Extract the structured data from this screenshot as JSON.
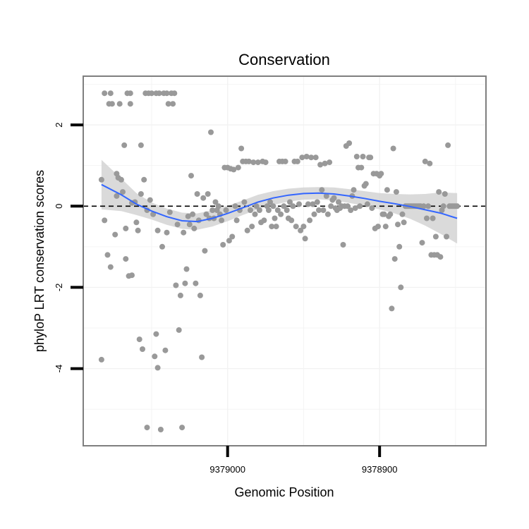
{
  "chart_data": {
    "type": "scatter",
    "title": "Conservation",
    "xlabel": "Genomic Position",
    "ylabel": "phyloP LRT conservation scores",
    "x_reversed": true,
    "xlim": [
      9379095,
      9378830
    ],
    "ylim": [
      -5.9,
      3.2
    ],
    "x_ticks": [
      9379000,
      9378900
    ],
    "x_tick_labels": [
      "9379000",
      "9378900"
    ],
    "y_ticks": [
      -4,
      -2,
      0,
      2
    ],
    "y_tick_labels": [
      "-4",
      "-2",
      "0",
      "2"
    ],
    "grid": true,
    "legend": "none",
    "colors": {
      "points": "#999999",
      "smooth": "#3366ff",
      "ribbon": "#d3d3d3",
      "reference": "#000000",
      "panel_border": "#7f7f7f"
    },
    "reference_line": {
      "y": 0,
      "style": "dashed"
    },
    "points": [
      [
        9379083,
        0.65
      ],
      [
        9379083,
        -3.78
      ],
      [
        9379081,
        2.78
      ],
      [
        9379081,
        -0.35
      ],
      [
        9379079,
        -1.2
      ],
      [
        9379078,
        2.52
      ],
      [
        9379077,
        2.78
      ],
      [
        9379077,
        -1.5
      ],
      [
        9379076,
        2.52
      ],
      [
        9379074,
        -0.7
      ],
      [
        9379073,
        0.8
      ],
      [
        9379073,
        0.25
      ],
      [
        9379072,
        0.7
      ],
      [
        9379071,
        2.52
      ],
      [
        9379070,
        0.65
      ],
      [
        9379069,
        0.35
      ],
      [
        9379068,
        1.5
      ],
      [
        9379067,
        -1.3
      ],
      [
        9379067,
        -0.55
      ],
      [
        9379066,
        2.78
      ],
      [
        9379065,
        -1.72
      ],
      [
        9379064,
        2.78
      ],
      [
        9379064,
        2.52
      ],
      [
        9379063,
        -1.7
      ],
      [
        9379063,
        0.08
      ],
      [
        9379061,
        0.1
      ],
      [
        9379060,
        -0.4
      ],
      [
        9379059,
        -0.6
      ],
      [
        9379058,
        -3.28
      ],
      [
        9379057,
        0.3
      ],
      [
        9379057,
        1.5
      ],
      [
        9379056,
        -3.52
      ],
      [
        9379055,
        0.65
      ],
      [
        9379054,
        2.78
      ],
      [
        9379053,
        -5.45
      ],
      [
        9379053,
        -0.1
      ],
      [
        9379052,
        2.78
      ],
      [
        9379051,
        0.15
      ],
      [
        9379050,
        2.78
      ],
      [
        9379049,
        -0.2
      ],
      [
        9379048,
        -3.7
      ],
      [
        9379047,
        -3.15
      ],
      [
        9379047,
        2.78
      ],
      [
        9379046,
        -3.98
      ],
      [
        9379046,
        -0.6
      ],
      [
        9379045,
        2.78
      ],
      [
        9379044,
        -5.5
      ],
      [
        9379043,
        -1.0
      ],
      [
        9379042,
        2.78
      ],
      [
        9379041,
        -3.55
      ],
      [
        9379040,
        -0.65
      ],
      [
        9379040,
        2.78
      ],
      [
        9379039,
        2.52
      ],
      [
        9379038,
        -0.15
      ],
      [
        9379037,
        2.78
      ],
      [
        9379036,
        2.52
      ],
      [
        9379035,
        2.78
      ],
      [
        9379034,
        -1.95
      ],
      [
        9379033,
        -0.45
      ],
      [
        9379032,
        -3.05
      ],
      [
        9379031,
        -2.2
      ],
      [
        9379030,
        -5.45
      ],
      [
        9379029,
        -0.65
      ],
      [
        9379028,
        -1.9
      ],
      [
        9379027,
        -1.55
      ],
      [
        9379026,
        -0.25
      ],
      [
        9379025,
        -0.45
      ],
      [
        9379024,
        0.75
      ],
      [
        9379023,
        -0.2
      ],
      [
        9379022,
        -0.55
      ],
      [
        9379021,
        -1.9
      ],
      [
        9379020,
        0.3
      ],
      [
        9379019,
        -0.35
      ],
      [
        9379018,
        -2.2
      ],
      [
        9379017,
        -3.72
      ],
      [
        9379016,
        0.2
      ],
      [
        9379015,
        -1.1
      ],
      [
        9379014,
        -0.2
      ],
      [
        9379013,
        0.3
      ],
      [
        9379012,
        -0.3
      ],
      [
        9379011,
        1.82
      ],
      [
        9379010,
        -0.1
      ],
      [
        9379009,
        -0.3
      ],
      [
        9379008,
        0.1
      ],
      [
        9379007,
        -0.1
      ],
      [
        9379006,
        0.0
      ],
      [
        9379005,
        -0.2
      ],
      [
        9379004,
        -0.35
      ],
      [
        9379003,
        -0.95
      ],
      [
        9379002,
        0.95
      ],
      [
        9379001,
        -0.1
      ],
      [
        9379000,
        0.95
      ],
      [
        9378999,
        -0.85
      ],
      [
        9378998,
        0.92
      ],
      [
        9378997,
        -0.75
      ],
      [
        9378996,
        0.9
      ],
      [
        9378995,
        0.0
      ],
      [
        9378994,
        -0.35
      ],
      [
        9378993,
        0.95
      ],
      [
        9378992,
        -0.1
      ],
      [
        9378991,
        1.42
      ],
      [
        9378990,
        1.1
      ],
      [
        9378989,
        0.1
      ],
      [
        9378988,
        1.1
      ],
      [
        9378987,
        -0.6
      ],
      [
        9378986,
        1.1
      ],
      [
        9378985,
        -0.1
      ],
      [
        9378984,
        -0.5
      ],
      [
        9378983,
        1.08
      ],
      [
        9378982,
        -0.2
      ],
      [
        9378981,
        0.0
      ],
      [
        9378980,
        1.08
      ],
      [
        9378979,
        -0.1
      ],
      [
        9378978,
        -0.4
      ],
      [
        9378977,
        1.1
      ],
      [
        9378976,
        -0.35
      ],
      [
        9378975,
        1.08
      ],
      [
        9378974,
        0.0
      ],
      [
        9378973,
        -0.1
      ],
      [
        9378972,
        0.1
      ],
      [
        9378971,
        -0.5
      ],
      [
        9378970,
        0.0
      ],
      [
        9378969,
        -0.3
      ],
      [
        9378968,
        -0.5
      ],
      [
        9378967,
        -0.1
      ],
      [
        9378966,
        1.1
      ],
      [
        9378965,
        -0.2
      ],
      [
        9378964,
        1.1
      ],
      [
        9378963,
        0.0
      ],
      [
        9378962,
        1.1
      ],
      [
        9378961,
        -0.1
      ],
      [
        9378960,
        -0.3
      ],
      [
        9378959,
        0.1
      ],
      [
        9378958,
        -0.35
      ],
      [
        9378957,
        0.0
      ],
      [
        9378956,
        1.1
      ],
      [
        9378955,
        -0.5
      ],
      [
        9378954,
        1.1
      ],
      [
        9378953,
        0.05
      ],
      [
        9378952,
        -0.6
      ],
      [
        9378951,
        1.2
      ],
      [
        9378950,
        -0.5
      ],
      [
        9378949,
        -0.8
      ],
      [
        9378948,
        1.22
      ],
      [
        9378947,
        0.05
      ],
      [
        9378946,
        -0.35
      ],
      [
        9378945,
        1.2
      ],
      [
        9378944,
        0.05
      ],
      [
        9378943,
        -0.2
      ],
      [
        9378942,
        1.2
      ],
      [
        9378941,
        0.1
      ],
      [
        9378940,
        -0.1
      ],
      [
        9378939,
        1.02
      ],
      [
        9378938,
        0.4
      ],
      [
        9378937,
        -0.1
      ],
      [
        9378936,
        1.05
      ],
      [
        9378935,
        0.25
      ],
      [
        9378934,
        -0.2
      ],
      [
        9378933,
        1.08
      ],
      [
        9378932,
        0.0
      ],
      [
        9378931,
        0.15
      ],
      [
        9378930,
        0.2
      ],
      [
        9378929,
        -0.05
      ],
      [
        9378928,
        -0.1
      ],
      [
        9378927,
        0.1
      ],
      [
        9378926,
        -0.05
      ],
      [
        9378925,
        0.0
      ],
      [
        9378924,
        -0.95
      ],
      [
        9378923,
        0.0
      ],
      [
        9378922,
        1.48
      ],
      [
        9378921,
        0.0
      ],
      [
        9378920,
        1.55
      ],
      [
        9378919,
        -0.1
      ],
      [
        9378918,
        0.25
      ],
      [
        9378917,
        0.4
      ],
      [
        9378916,
        -0.05
      ],
      [
        9378915,
        1.22
      ],
      [
        9378914,
        0.95
      ],
      [
        9378913,
        0.0
      ],
      [
        9378912,
        0.95
      ],
      [
        9378911,
        1.22
      ],
      [
        9378910,
        0.5
      ],
      [
        9378909,
        0.55
      ],
      [
        9378908,
        0.05
      ],
      [
        9378907,
        1.2
      ],
      [
        9378906,
        1.2
      ],
      [
        9378905,
        -0.05
      ],
      [
        9378904,
        0.8
      ],
      [
        9378903,
        -0.55
      ],
      [
        9378902,
        0.8
      ],
      [
        9378901,
        -0.5
      ],
      [
        9378900,
        0.75
      ],
      [
        9378899,
        0.8
      ],
      [
        9378898,
        -0.2
      ],
      [
        9378897,
        -0.2
      ],
      [
        9378896,
        -0.5
      ],
      [
        9378895,
        0.4
      ],
      [
        9378894,
        -0.25
      ],
      [
        9378893,
        -0.2
      ],
      [
        9378892,
        -2.52
      ],
      [
        9378891,
        1.42
      ],
      [
        9378890,
        -1.3
      ],
      [
        9378889,
        0.35
      ],
      [
        9378888,
        -0.45
      ],
      [
        9378887,
        -1.0
      ],
      [
        9378886,
        -2.0
      ],
      [
        9378885,
        -0.2
      ],
      [
        9378884,
        -0.4
      ],
      [
        9378883,
        0.0
      ],
      [
        9378882,
        0.0
      ],
      [
        9378881,
        0.0
      ],
      [
        9378880,
        0.0
      ],
      [
        9378879,
        0.0
      ],
      [
        9378878,
        0.0
      ],
      [
        9378877,
        0.0
      ],
      [
        9378876,
        0.0
      ],
      [
        9378875,
        0.0
      ],
      [
        9378874,
        0.0
      ],
      [
        9378873,
        0.0
      ],
      [
        9378872,
        -0.9
      ],
      [
        9378871,
        0.0
      ],
      [
        9378870,
        1.1
      ],
      [
        9378869,
        -0.3
      ],
      [
        9378868,
        0.0
      ],
      [
        9378867,
        1.05
      ],
      [
        9378866,
        -1.2
      ],
      [
        9378865,
        -0.3
      ],
      [
        9378864,
        -1.2
      ],
      [
        9378863,
        -0.75
      ],
      [
        9378862,
        -1.2
      ],
      [
        9378861,
        0.35
      ],
      [
        9378860,
        -1.25
      ],
      [
        9378859,
        -0.1
      ],
      [
        9378858,
        0.0
      ],
      [
        9378857,
        0.3
      ],
      [
        9378856,
        -0.75
      ],
      [
        9378855,
        1.5
      ],
      [
        9378854,
        0.0
      ],
      [
        9378853,
        0.0
      ],
      [
        9378852,
        0.0
      ],
      [
        9378851,
        0.0
      ],
      [
        9378850,
        0.0
      ],
      [
        9378849,
        0.0
      ]
    ],
    "smooth": {
      "x": [
        9379083,
        9379070,
        9379060,
        9379050,
        9379040,
        9379030,
        9379020,
        9379010,
        9379000,
        9378990,
        9378980,
        9378970,
        9378960,
        9378950,
        9378940,
        9378930,
        9378920,
        9378910,
        9378900,
        9378890,
        9378880,
        9378870,
        9378860,
        9378849
      ],
      "y": [
        0.53,
        0.28,
        0.05,
        -0.12,
        -0.26,
        -0.36,
        -0.38,
        -0.3,
        -0.18,
        -0.04,
        0.1,
        0.2,
        0.27,
        0.31,
        0.32,
        0.3,
        0.25,
        0.19,
        0.12,
        0.06,
        -0.01,
        -0.09,
        -0.17,
        -0.3
      ],
      "lower": [
        -0.08,
        -0.12,
        -0.22,
        -0.33,
        -0.46,
        -0.56,
        -0.58,
        -0.5,
        -0.37,
        -0.22,
        -0.08,
        0.03,
        0.11,
        0.16,
        0.17,
        0.14,
        0.08,
        0.01,
        -0.08,
        -0.18,
        -0.31,
        -0.48,
        -0.68,
        -0.92
      ],
      "upper": [
        1.14,
        0.68,
        0.32,
        0.09,
        -0.06,
        -0.16,
        -0.18,
        -0.1,
        0.01,
        0.14,
        0.28,
        0.37,
        0.43,
        0.46,
        0.47,
        0.46,
        0.42,
        0.37,
        0.32,
        0.3,
        0.29,
        0.3,
        0.34,
        0.32
      ]
    }
  }
}
